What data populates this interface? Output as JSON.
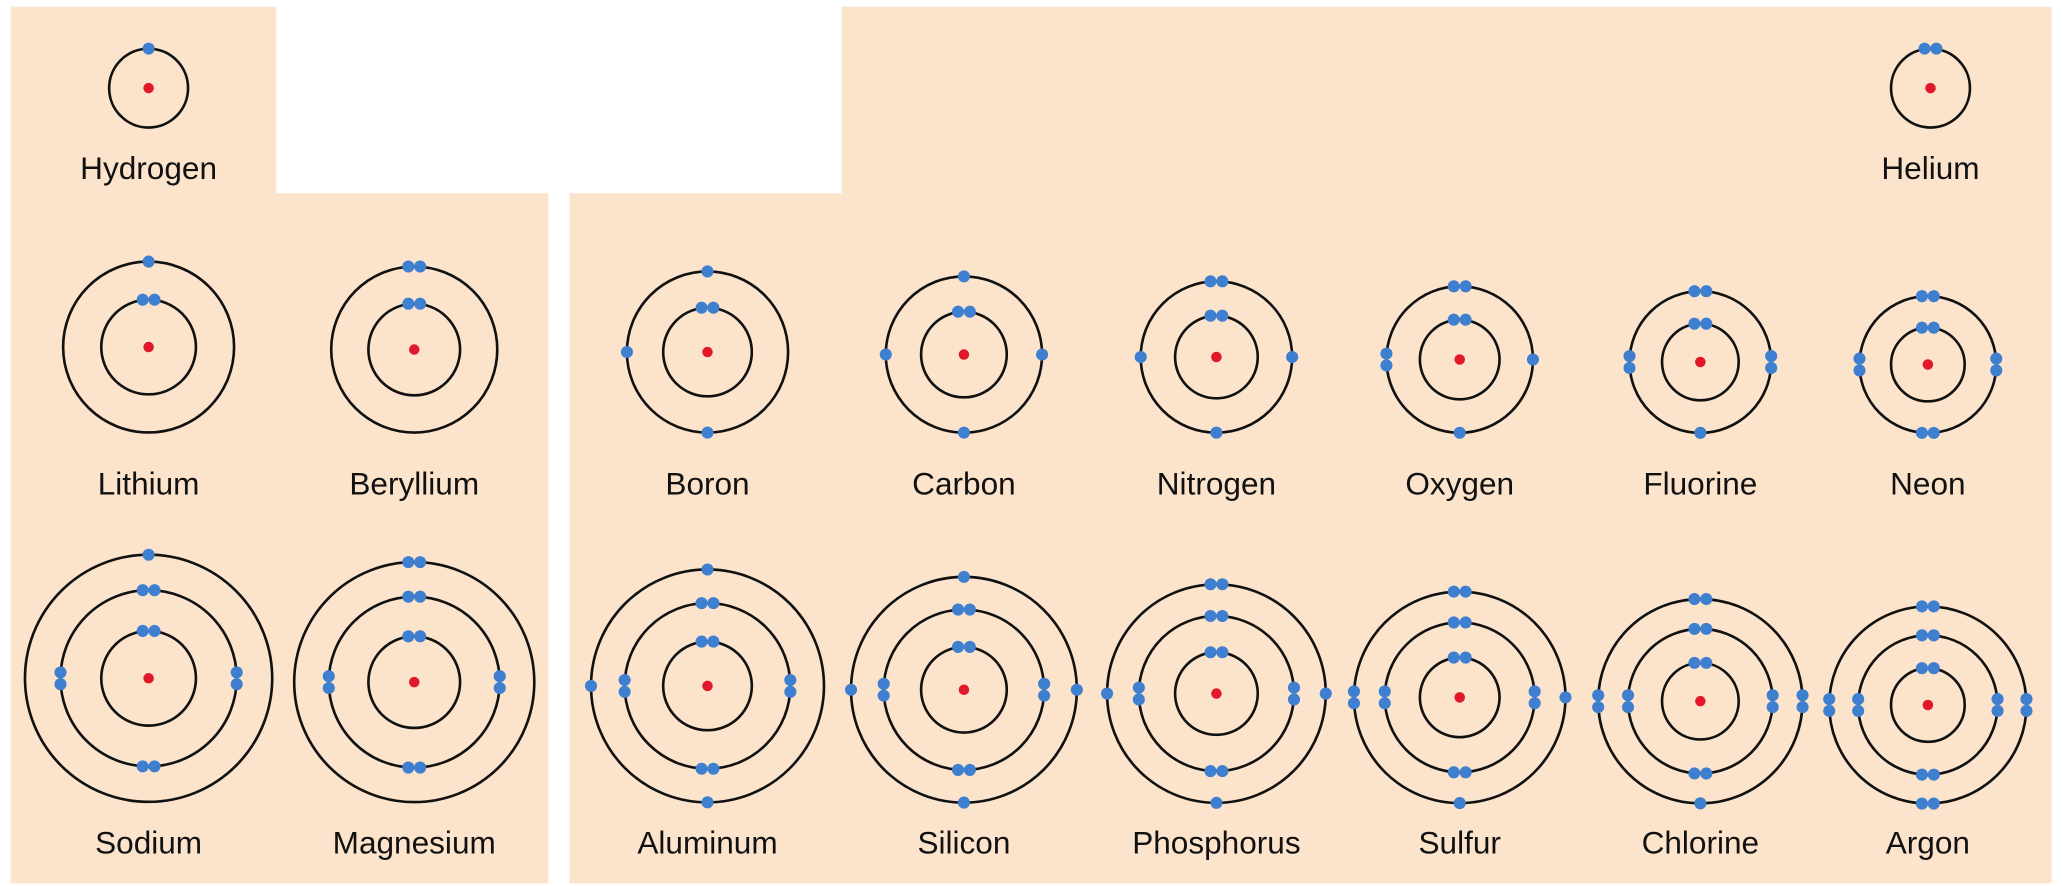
{
  "elements": [
    {
      "name": "Hydrogen",
      "shells": [
        1
      ]
    },
    {
      "name": "Helium",
      "shells": [
        2
      ]
    },
    {
      "name": "Lithium",
      "shells": [
        2,
        1
      ]
    },
    {
      "name": "Beryllium",
      "shells": [
        2,
        2
      ]
    },
    {
      "name": "Boron",
      "shells": [
        2,
        3
      ]
    },
    {
      "name": "Carbon",
      "shells": [
        2,
        4
      ]
    },
    {
      "name": "Nitrogen",
      "shells": [
        2,
        5
      ]
    },
    {
      "name": "Oxygen",
      "shells": [
        2,
        6
      ]
    },
    {
      "name": "Fluorine",
      "shells": [
        2,
        7
      ]
    },
    {
      "name": "Neon",
      "shells": [
        2,
        8
      ]
    },
    {
      "name": "Sodium",
      "shells": [
        2,
        8,
        1
      ]
    },
    {
      "name": "Magnesium",
      "shells": [
        2,
        8,
        2
      ]
    },
    {
      "name": "Aluminum",
      "shells": [
        2,
        8,
        3
      ]
    },
    {
      "name": "Silicon",
      "shells": [
        2,
        8,
        4
      ]
    },
    {
      "name": "Phosphorus",
      "shells": [
        2,
        8,
        5
      ]
    },
    {
      "name": "Sulfur",
      "shells": [
        2,
        8,
        6
      ]
    },
    {
      "name": "Chlorine",
      "shells": [
        2,
        8,
        7
      ]
    },
    {
      "name": "Argon",
      "shells": [
        2,
        8,
        8
      ]
    }
  ]
}
